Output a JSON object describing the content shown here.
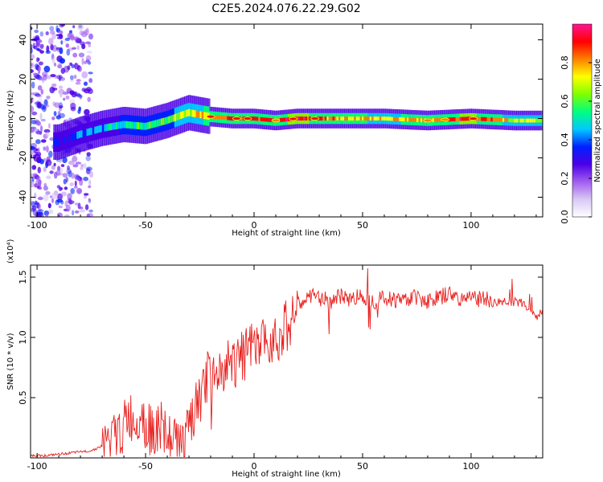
{
  "title": "C2E5.2024.076.22.29.G02",
  "colors": {
    "background": "#ffffff",
    "axes": "#000000",
    "snr_line": "#e8201e",
    "colormap": [
      "#ffffff",
      "#d8c8f4",
      "#a35cf0",
      "#4b00e6",
      "#0020ff",
      "#00c8ff",
      "#00ff80",
      "#80ff00",
      "#ffff00",
      "#ff8000",
      "#ff0000",
      "#ff1493"
    ]
  },
  "chart_data": [
    {
      "type": "heatmap",
      "title": "",
      "xlabel": "Height of straight line (km)",
      "ylabel": "Frequency (Hz)",
      "xlim": [
        -103,
        133
      ],
      "ylim": [
        -50,
        48
      ],
      "xticks": [
        "-100",
        "-50",
        "0",
        "50",
        "100"
      ],
      "xtick_values": [
        -100,
        -50,
        0,
        50,
        100
      ],
      "yticks": [
        "40",
        "20",
        "0",
        "-20",
        "-40"
      ],
      "ytick_values": [
        40,
        20,
        0,
        -20,
        -40
      ],
      "colorbar": {
        "label": "Normalized spectral amplitude",
        "range": [
          0,
          1
        ],
        "ticks": [
          "0.0",
          "0.2",
          "0.4",
          "0.6",
          "0.8"
        ],
        "tick_values": [
          0.0,
          0.2,
          0.4,
          0.6,
          0.8
        ]
      },
      "ridge": {
        "height_km": [
          -90,
          -80,
          -70,
          -60,
          -50,
          -40,
          -30,
          -20,
          -10,
          0,
          10,
          20,
          40,
          60,
          80,
          100,
          120,
          133
        ],
        "frequency_hz": [
          -12,
          -8,
          -5,
          -3,
          -4,
          -1,
          3,
          1,
          0,
          0,
          -1,
          0,
          0,
          0,
          -1,
          0,
          -1,
          -1
        ],
        "peak_amplitude": [
          0.35,
          0.4,
          0.45,
          0.5,
          0.55,
          0.6,
          0.7,
          0.8,
          0.85,
          0.9,
          0.85,
          0.95,
          0.8,
          0.75,
          0.8,
          0.95,
          0.7,
          0.7
        ]
      },
      "noise_region_km": [
        -103,
        -75
      ]
    },
    {
      "type": "line",
      "title": "",
      "xlabel": "Height of straight line (km)",
      "ylabel": "SNR (10 * v/v)",
      "y_multiplier": "(x10⁴)",
      "xlim": [
        -103,
        133
      ],
      "ylim": [
        0,
        1.6
      ],
      "xticks": [
        "-100",
        "-50",
        "0",
        "50",
        "100"
      ],
      "xtick_values": [
        -100,
        -50,
        0,
        50,
        100
      ],
      "yticks": [
        "1.5",
        "1.0",
        "0.5"
      ],
      "ytick_values": [
        1.5,
        1.0,
        0.5
      ],
      "series": [
        {
          "x": [
            -103,
            -95,
            -90,
            -85,
            -80,
            -75,
            -70,
            -65,
            -60,
            -58,
            -55,
            -52,
            -50,
            -48,
            -45,
            -42,
            -40,
            -38,
            -35,
            -32,
            -30,
            -28,
            -26,
            -24,
            -22,
            -20,
            -18,
            -16,
            -14,
            -12,
            -10,
            -8,
            -6,
            -4,
            -2,
            0,
            2,
            4,
            6,
            8,
            10,
            12,
            14,
            16,
            18,
            20,
            22,
            25,
            28,
            30,
            35,
            40,
            45,
            50,
            55,
            60,
            65,
            70,
            75,
            80,
            85,
            90,
            95,
            100,
            103,
            105,
            110,
            115,
            120,
            125,
            128,
            130,
            133
          ],
          "y": [
            0.02,
            0.02,
            0.03,
            0.04,
            0.05,
            0.06,
            0.1,
            0.15,
            0.25,
            0.35,
            0.3,
            0.4,
            0.28,
            0.22,
            0.25,
            0.15,
            0.2,
            0.14,
            0.12,
            0.15,
            0.2,
            0.35,
            0.45,
            0.5,
            0.65,
            0.7,
            0.62,
            0.75,
            0.72,
            0.8,
            0.82,
            0.78,
            0.88,
            0.85,
            0.9,
            0.92,
            0.88,
            0.95,
            0.92,
            1.0,
            1.05,
            1.0,
            1.08,
            1.12,
            1.2,
            1.25,
            1.3,
            1.32,
            1.35,
            1.33,
            1.3,
            1.34,
            1.32,
            1.35,
            1.3,
            1.33,
            1.31,
            1.32,
            1.34,
            1.3,
            1.33,
            1.36,
            1.32,
            1.35,
            1.3,
            1.34,
            1.28,
            1.3,
            1.3,
            1.27,
            1.22,
            1.18,
            1.2
          ]
        }
      ]
    }
  ]
}
